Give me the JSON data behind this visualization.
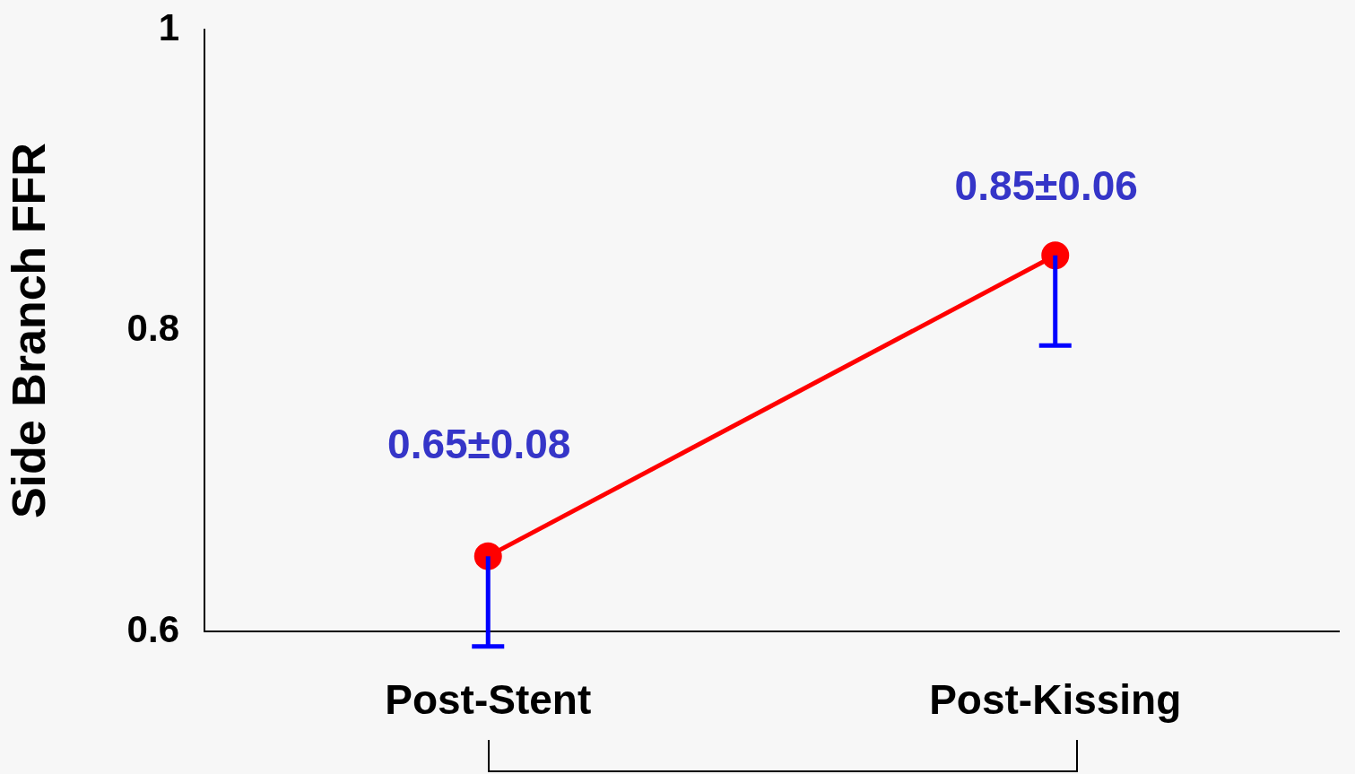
{
  "chart_data": {
    "type": "line",
    "ylabel": "Side Branch FFR",
    "categories": [
      "Post-Stent",
      "Post-Kissing"
    ],
    "series": [
      {
        "color": "#ff0000",
        "values": [
          0.65,
          0.85
        ],
        "errors": [
          [
            0.59,
            0.65
          ],
          [
            0.79,
            0.85
          ]
        ],
        "value_labels": [
          "0.65±0.08",
          "0.85±0.06"
        ]
      }
    ],
    "ylim": [
      0.6,
      1
    ],
    "yticks": [
      0.6,
      0.8,
      1
    ],
    "grid": false,
    "legend": false,
    "marker": "circle",
    "line_style": "solid"
  }
}
